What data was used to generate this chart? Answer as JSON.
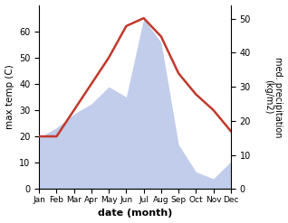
{
  "months": [
    "Jan",
    "Feb",
    "Mar",
    "Apr",
    "May",
    "Jun",
    "Jul",
    "Aug",
    "Sep",
    "Oct",
    "Nov",
    "Dec"
  ],
  "month_x": [
    1,
    2,
    3,
    4,
    5,
    6,
    7,
    8,
    9,
    10,
    11,
    12
  ],
  "temperature": [
    20,
    20,
    30,
    40,
    50,
    62,
    65,
    58,
    44,
    36,
    30,
    22
  ],
  "precipitation": [
    15,
    18,
    22,
    25,
    30,
    27,
    50,
    43,
    13,
    5,
    3,
    8
  ],
  "temp_color": "#c0392b",
  "precip_fill_color": "#b8c4e8",
  "precip_fill_alpha": 0.85,
  "temp_ylim": [
    0,
    70
  ],
  "temp_yticks": [
    0,
    10,
    20,
    30,
    40,
    50,
    60
  ],
  "precip_ylim": [
    0,
    54
  ],
  "precip_yticks": [
    0,
    10,
    20,
    30,
    40,
    50
  ],
  "xlabel": "date (month)",
  "ylabel_left": "max temp (C)",
  "ylabel_right": "med. precipitation\n(kg/m2)",
  "fig_width": 3.18,
  "fig_height": 2.47,
  "dpi": 100
}
